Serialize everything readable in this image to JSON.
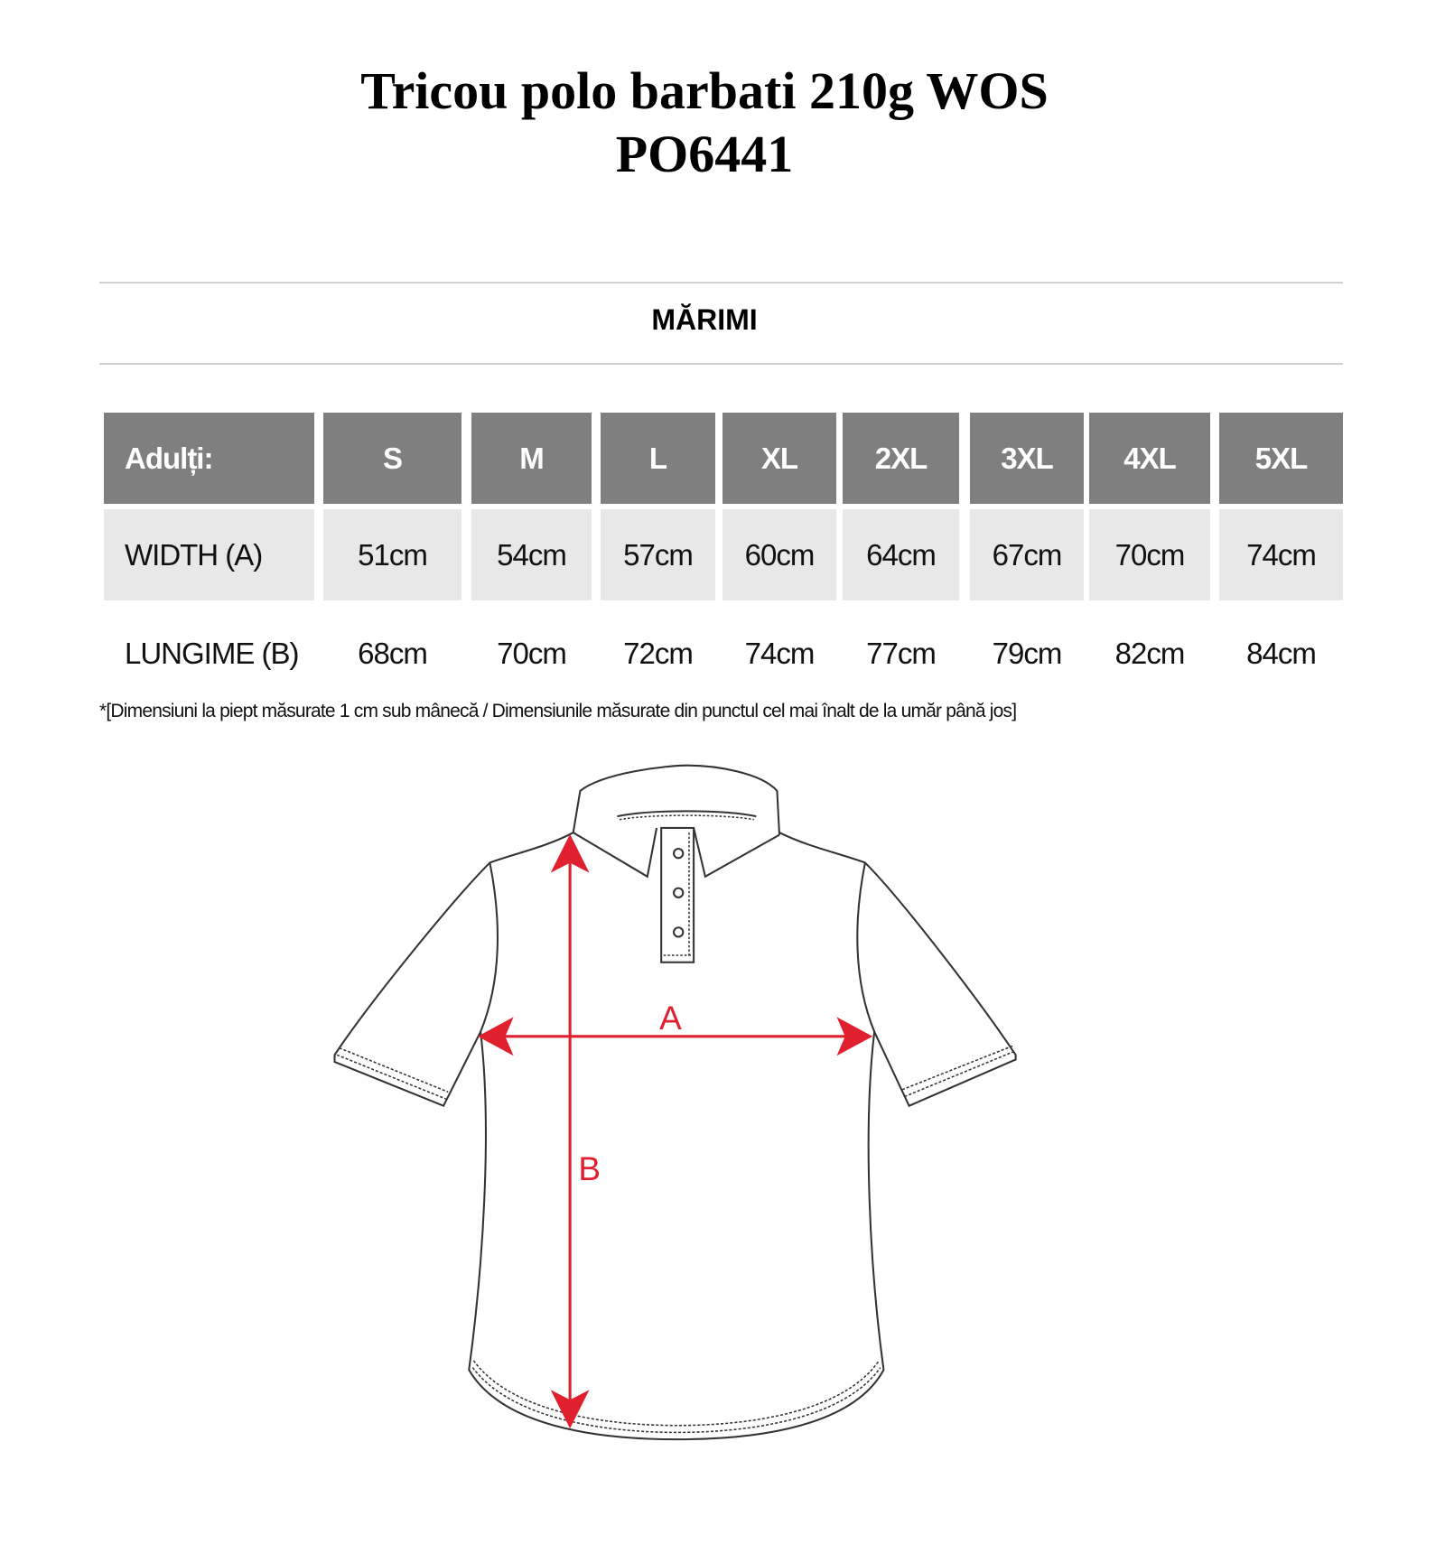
{
  "title": {
    "line1": "Tricou polo barbati 210g WOS",
    "line2": "PO6441"
  },
  "section_title": "MĂRIMI",
  "table": {
    "header_label": "Adulți:",
    "sizes": [
      "S",
      "M",
      "L",
      "XL",
      "2XL",
      "3XL",
      "4XL",
      "5XL"
    ],
    "rows": [
      {
        "label": "WIDTH (A)",
        "values": [
          "51cm",
          "54cm",
          "57cm",
          "60cm",
          "64cm",
          "67cm",
          "70cm",
          "74cm"
        ]
      },
      {
        "label": "LUNGIME (B)",
        "values": [
          "68cm",
          "70cm",
          "72cm",
          "74cm",
          "77cm",
          "79cm",
          "82cm",
          "84cm"
        ]
      }
    ]
  },
  "footnote": "*[Dimensiuni la piept măsurate 1 cm sub mânecă / Dimensiunile măsurate din punctul cel mai înalt de la umăr până jos]",
  "diagram": {
    "label_a": "A",
    "label_b": "B",
    "arrow_color": "#e0202e",
    "header_color": "#7f7f7f",
    "row_color": "#e8e8e8"
  }
}
